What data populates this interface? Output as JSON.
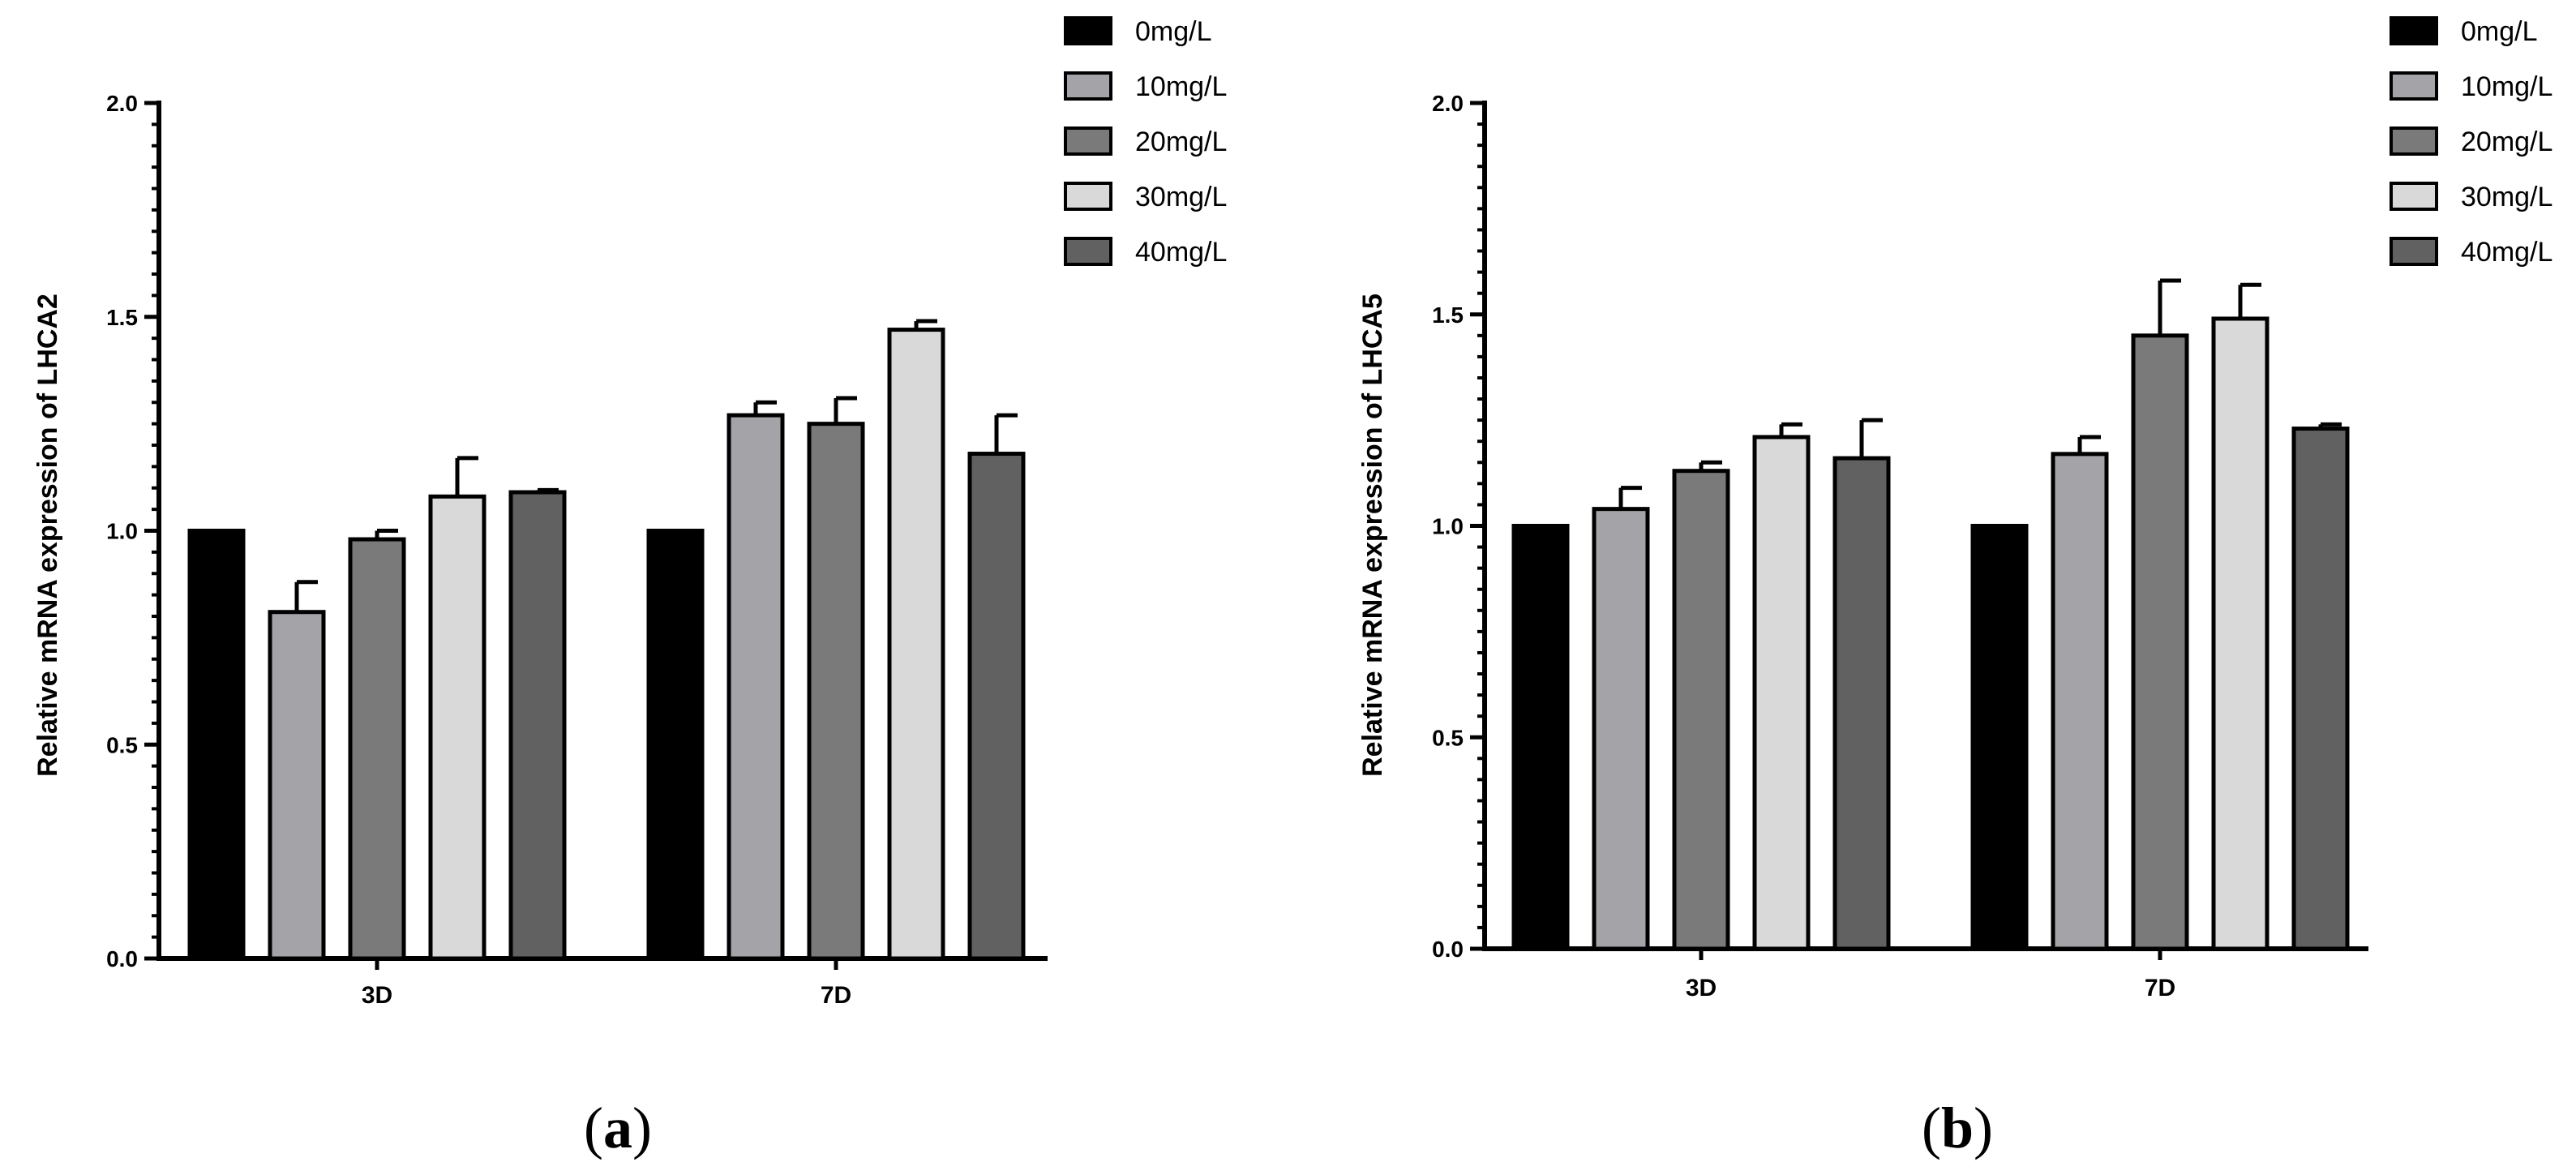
{
  "colors": {
    "axis": "#000000",
    "series": [
      "#000000",
      "#a3a3a8",
      "#7a7a7a",
      "#d9d9d9",
      "#616161"
    ]
  },
  "chart_data": [
    {
      "type": "bar",
      "panel_label": "a",
      "title": "",
      "xlabel": "",
      "ylabel": "Relative mRNA expression of LHCA2",
      "ylim": [
        0,
        2.0
      ],
      "yticks": [
        "0.0",
        "0.5",
        "1.0",
        "1.5",
        "2.0"
      ],
      "categories": [
        "3D",
        "7D"
      ],
      "grid": false,
      "legend_position": "top-right",
      "series": [
        {
          "name": "0mg/L",
          "values": [
            1.0,
            1.0
          ],
          "errors": [
            0,
            0
          ]
        },
        {
          "name": "10mg/L",
          "values": [
            0.81,
            1.27
          ],
          "errors": [
            0.07,
            0.03
          ]
        },
        {
          "name": "20mg/L",
          "values": [
            0.98,
            1.25
          ],
          "errors": [
            0.02,
            0.06
          ]
        },
        {
          "name": "30mg/L",
          "values": [
            1.08,
            1.47
          ],
          "errors": [
            0.09,
            0.02
          ]
        },
        {
          "name": "40mg/L",
          "values": [
            1.09,
            1.18
          ],
          "errors": [
            0.005,
            0.09
          ]
        }
      ]
    },
    {
      "type": "bar",
      "panel_label": "b",
      "title": "",
      "xlabel": "",
      "ylabel": "Relative mRNA expression of LHCA5",
      "ylim": [
        0,
        2.0
      ],
      "yticks": [
        "0.0",
        "0.5",
        "1.0",
        "1.5",
        "2.0"
      ],
      "categories": [
        "3D",
        "7D"
      ],
      "grid": false,
      "legend_position": "top-right",
      "series": [
        {
          "name": "0mg/L",
          "values": [
            1.0,
            1.0
          ],
          "errors": [
            0,
            0
          ]
        },
        {
          "name": "10mg/L",
          "values": [
            1.04,
            1.17
          ],
          "errors": [
            0.05,
            0.04
          ]
        },
        {
          "name": "20mg/L",
          "values": [
            1.13,
            1.45
          ],
          "errors": [
            0.02,
            0.13
          ]
        },
        {
          "name": "30mg/L",
          "values": [
            1.21,
            1.49
          ],
          "errors": [
            0.03,
            0.08
          ]
        },
        {
          "name": "40mg/L",
          "values": [
            1.16,
            1.23
          ],
          "errors": [
            0.09,
            0.01
          ]
        }
      ]
    }
  ]
}
